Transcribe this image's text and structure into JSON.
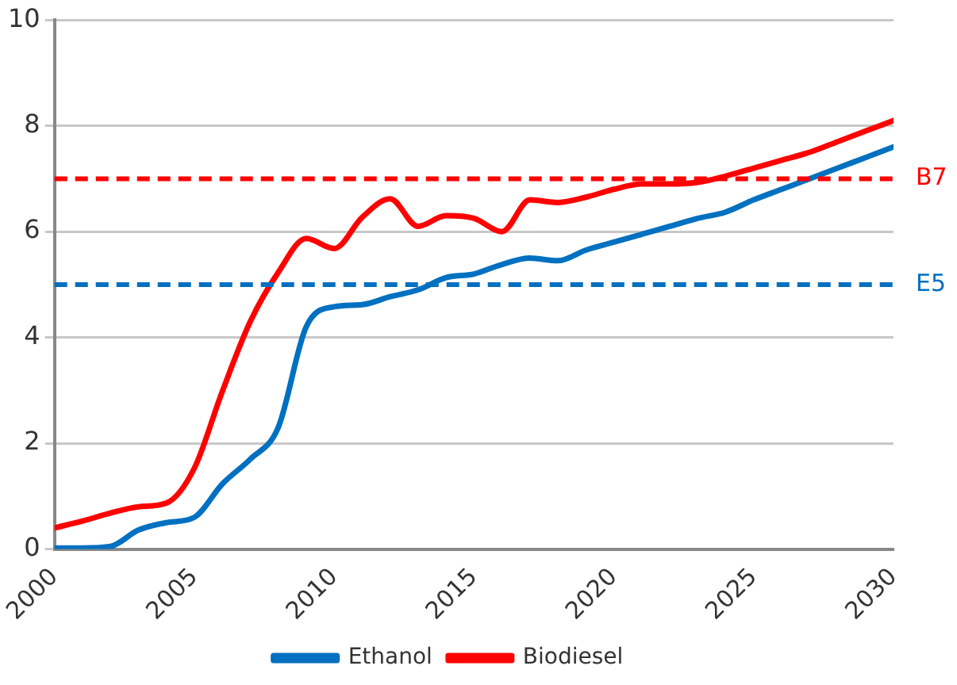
{
  "chart_data": {
    "type": "line",
    "x": [
      2000,
      2001,
      2002,
      2003,
      2004,
      2005,
      2006,
      2007,
      2008,
      2009,
      2010,
      2011,
      2012,
      2013,
      2014,
      2015,
      2016,
      2017,
      2018,
      2019,
      2020,
      2021,
      2022,
      2023,
      2024,
      2025,
      2026,
      2027,
      2028,
      2029,
      2030
    ],
    "series": [
      {
        "name": "Ethanol",
        "color": "#0070c0",
        "values": [
          0.02,
          0.02,
          0.05,
          0.36,
          0.5,
          0.6,
          1.23,
          1.7,
          2.3,
          4.2,
          4.58,
          4.62,
          4.77,
          4.9,
          5.13,
          5.2,
          5.38,
          5.5,
          5.45,
          5.65,
          5.8,
          5.95,
          6.1,
          6.25,
          6.37,
          6.6,
          6.8,
          7.0,
          7.2,
          7.4,
          7.6
        ]
      },
      {
        "name": "Biodiesel",
        "color": "#ff0000",
        "values": [
          0.4,
          0.53,
          0.68,
          0.8,
          0.87,
          1.53,
          2.98,
          4.3,
          5.23,
          5.87,
          5.68,
          6.27,
          6.62,
          6.1,
          6.3,
          6.25,
          6.0,
          6.6,
          6.55,
          6.65,
          6.8,
          6.9,
          6.9,
          6.93,
          7.05,
          7.2,
          7.35,
          7.5,
          7.7,
          7.9,
          8.1
        ]
      }
    ],
    "xlim": [
      2000,
      2030
    ],
    "xticks": [
      2000,
      2005,
      2010,
      2015,
      2020,
      2025,
      2030
    ],
    "ylim": [
      0,
      10
    ],
    "yticks": [
      0,
      2,
      4,
      6,
      8,
      10
    ],
    "ref_lines": [
      {
        "axis": "y",
        "value": 7,
        "label": "B7",
        "color": "#ff0000",
        "line_style": "dashed"
      },
      {
        "axis": "y",
        "value": 5,
        "label": "E5",
        "color": "#0070c0",
        "line_style": "dashed"
      }
    ],
    "grid": "y",
    "legend": "bottom",
    "marker": "none",
    "line_style": "solid"
  }
}
